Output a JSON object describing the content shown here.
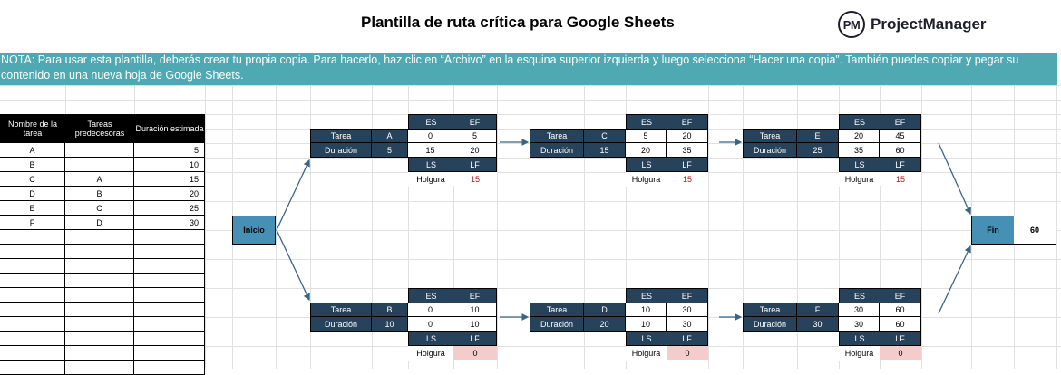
{
  "header": {
    "title": "Plantilla de ruta crítica para Google Sheets",
    "logo_mark": "PM",
    "logo_text": "ProjectManager"
  },
  "note": {
    "line1": "NOTA: Para usar esta plantilla, deberás crear tu propia copia. Para hacerlo, haz clic en “Archivo” en la esquina superior izquierda y luego selecciona “Hacer una copia”. También puedes copiar y pegar su",
    "line2": "contenido en una nueva hoja de Google Sheets."
  },
  "task_table": {
    "headers": [
      "Nombre de la tarea",
      "Tareas predecesoras",
      "Duración estimada"
    ],
    "rows": [
      {
        "name": "A",
        "pred": "",
        "dur": "5"
      },
      {
        "name": "B",
        "pred": "",
        "dur": "10"
      },
      {
        "name": "C",
        "pred": "A",
        "dur": "15"
      },
      {
        "name": "D",
        "pred": "B",
        "dur": "20"
      },
      {
        "name": "E",
        "pred": "C",
        "dur": "25"
      },
      {
        "name": "F",
        "pred": "D",
        "dur": "30"
      }
    ]
  },
  "labels": {
    "tarea": "Tarea",
    "duracion": "Duración",
    "es": "ES",
    "ef": "EF",
    "ls": "LS",
    "lf": "LF",
    "holgura": "Holgura"
  },
  "start": {
    "label": "Inicio"
  },
  "end": {
    "label": "Fin",
    "value": "60"
  },
  "nodes": {
    "A": {
      "task": "A",
      "duration": "5",
      "es": "0",
      "ef": "5",
      "ls": "15",
      "lf": "20",
      "slack": "15"
    },
    "C": {
      "task": "C",
      "duration": "15",
      "es": "5",
      "ef": "20",
      "ls": "20",
      "lf": "35",
      "slack": "15"
    },
    "E": {
      "task": "E",
      "duration": "25",
      "es": "20",
      "ef": "45",
      "ls": "35",
      "lf": "60",
      "slack": "15"
    },
    "B": {
      "task": "B",
      "duration": "10",
      "es": "0",
      "ef": "10",
      "ls": "0",
      "lf": "10",
      "slack": "0"
    },
    "D": {
      "task": "D",
      "duration": "20",
      "es": "10",
      "ef": "30",
      "ls": "10",
      "lf": "30",
      "slack": "0"
    },
    "F": {
      "task": "F",
      "duration": "30",
      "es": "30",
      "ef": "60",
      "ls": "30",
      "lf": "60",
      "slack": "0"
    }
  },
  "colors": {
    "note_bg": "#4fa9b3",
    "node_dark": "#27435c",
    "start_end": "#4790b5",
    "critical_slack": "#f4cccc",
    "slack_text": "#a61c1c",
    "arrow": "#3a6484"
  }
}
